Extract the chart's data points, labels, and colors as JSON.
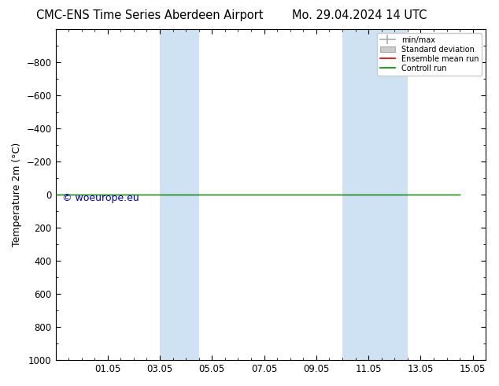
{
  "title_left": "CMC-ENS Time Series Aberdeen Airport",
  "title_right": "Mo. 29.04.2024 14 UTC",
  "ylabel": "Temperature 2m (°C)",
  "watermark": "© woeurope.eu",
  "ylim_bottom": 1000,
  "ylim_top": -1000,
  "y_ticks": [
    -800,
    -600,
    -400,
    -200,
    0,
    200,
    400,
    600,
    800,
    1000
  ],
  "xlim_min": 0.0,
  "xlim_max": 16.5,
  "x_tick_positions": [
    2,
    4,
    6,
    8,
    10,
    12,
    14,
    16
  ],
  "x_tick_labels": [
    "01.05",
    "03.05",
    "05.05",
    "07.05",
    "09.05",
    "11.05",
    "13.05",
    "15.05"
  ],
  "shaded_bands": [
    {
      "x_start": 4.0,
      "x_end": 5.5,
      "color": "#cfe2f3"
    },
    {
      "x_start": 11.0,
      "x_end": 13.5,
      "color": "#cfe2f3"
    }
  ],
  "line_x_start": 0.0,
  "line_x_end": 15.5,
  "control_run_y": 0,
  "ensemble_mean_y": 0,
  "control_run_color": "#008800",
  "ensemble_mean_color": "#cc0000",
  "background_color": "#ffffff",
  "plot_bg_color": "#ffffff",
  "legend_entries": [
    "min/max",
    "Standard deviation",
    "Ensemble mean run",
    "Controll run"
  ],
  "legend_line_color": "#aaaaaa",
  "legend_std_color": "#cccccc",
  "legend_ensemble_color": "#cc0000",
  "legend_control_color": "#008800",
  "title_fontsize": 10.5,
  "tick_fontsize": 8.5,
  "label_fontsize": 9,
  "watermark_color": "#0000bb",
  "watermark_fontsize": 9
}
